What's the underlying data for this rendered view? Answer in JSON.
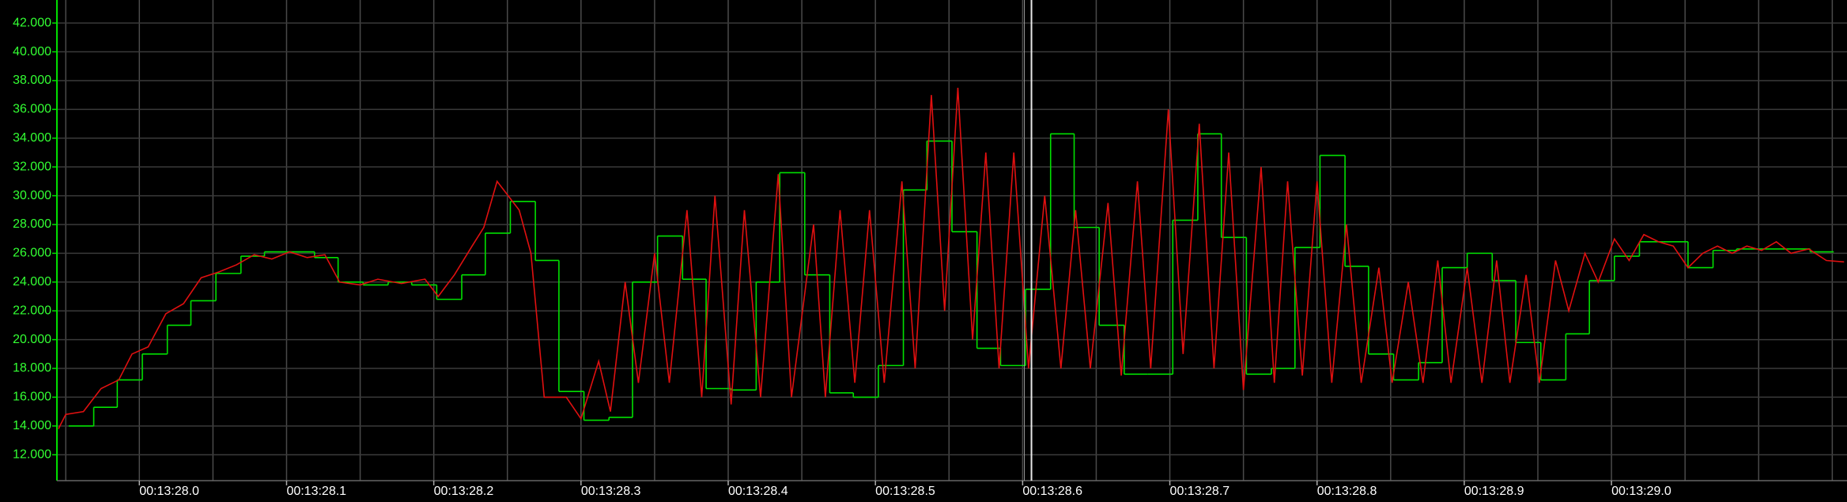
{
  "chart_data": {
    "type": "line",
    "xlim": [
      807.944,
      809.16
    ],
    "ylim": [
      10.2,
      43.6
    ],
    "xticks": [
      {
        "value": 808.0,
        "label": "00:13:28.0"
      },
      {
        "value": 808.1,
        "label": "00:13:28.1"
      },
      {
        "value": 808.2,
        "label": "00:13:28.2"
      },
      {
        "value": 808.3,
        "label": "00:13:28.3"
      },
      {
        "value": 808.4,
        "label": "00:13:28.4"
      },
      {
        "value": 808.5,
        "label": "00:13:28.5"
      },
      {
        "value": 808.6,
        "label": "00:13:28.6"
      },
      {
        "value": 808.7,
        "label": "00:13:28.7"
      },
      {
        "value": 808.8,
        "label": "00:13:28.8"
      },
      {
        "value": 808.9,
        "label": "00:13:28.9"
      },
      {
        "value": 809.0,
        "label": "00:13:29.0"
      }
    ],
    "xgrid": [
      807.95,
      808.0,
      808.05,
      808.1,
      808.15,
      808.2,
      808.25,
      808.3,
      808.35,
      808.4,
      808.45,
      808.5,
      808.55,
      808.6,
      808.65,
      808.7,
      808.75,
      808.8,
      808.85,
      808.9,
      808.95,
      809.0,
      809.05,
      809.1,
      809.15
    ],
    "yticks": [
      {
        "value": 12,
        "label": "12.000"
      },
      {
        "value": 14,
        "label": "14.000"
      },
      {
        "value": 16,
        "label": "16.000"
      },
      {
        "value": 18,
        "label": "18.000"
      },
      {
        "value": 20,
        "label": "20.000"
      },
      {
        "value": 22,
        "label": "22.000"
      },
      {
        "value": 24,
        "label": "24.000"
      },
      {
        "value": 26,
        "label": "26.000"
      },
      {
        "value": 28,
        "label": "28.000"
      },
      {
        "value": 30,
        "label": "30.000"
      },
      {
        "value": 32,
        "label": "32.000"
      },
      {
        "value": 34,
        "label": "34.000"
      },
      {
        "value": 36,
        "label": "36.000"
      },
      {
        "value": 38,
        "label": "38.000"
      },
      {
        "value": 40,
        "label": "40.000"
      },
      {
        "value": 42,
        "label": "42.000"
      }
    ],
    "grid": true,
    "cursor": 808.606,
    "series": [
      {
        "color": "#00e000",
        "step": true,
        "x": [
          807.952,
          807.969,
          807.985,
          808.002,
          808.019,
          808.035,
          808.052,
          808.069,
          808.085,
          808.102,
          808.119,
          808.135,
          808.152,
          808.169,
          808.185,
          808.202,
          808.219,
          808.235,
          808.252,
          808.269,
          808.285,
          808.302,
          808.319,
          808.335,
          808.352,
          808.369,
          808.385,
          808.402,
          808.419,
          808.435,
          808.452,
          808.469,
          808.485,
          808.502,
          808.519,
          808.535,
          808.552,
          808.569,
          808.585,
          808.602,
          808.619,
          808.635,
          808.652,
          808.669,
          808.685,
          808.702,
          808.719,
          808.735,
          808.752,
          808.769,
          808.785,
          808.802,
          808.819,
          808.835,
          808.852,
          808.869,
          808.885,
          808.902,
          808.919,
          808.935,
          808.952,
          808.969,
          808.985,
          809.002,
          809.019,
          809.035,
          809.052,
          809.069,
          809.085,
          809.102,
          809.119,
          809.135
        ],
        "values": [
          14.0,
          15.3,
          17.2,
          19.0,
          21.0,
          22.7,
          24.6,
          25.8,
          26.1,
          26.1,
          25.7,
          24.0,
          23.8,
          24.0,
          23.8,
          22.8,
          24.5,
          27.4,
          29.6,
          25.5,
          16.4,
          14.4,
          14.6,
          24.0,
          27.2,
          24.2,
          16.6,
          16.5,
          24.0,
          31.6,
          24.5,
          16.3,
          16.0,
          18.2,
          30.4,
          33.8,
          27.5,
          19.4,
          18.2,
          23.5,
          34.3,
          27.8,
          21.0,
          17.6,
          17.6,
          28.3,
          34.3,
          27.1,
          17.6,
          18.0,
          26.4,
          32.8,
          25.1,
          19.0,
          17.2,
          18.4,
          25.0,
          26.0,
          24.1,
          19.8,
          17.2,
          20.4,
          24.1,
          25.8,
          26.8,
          26.8,
          25.0,
          26.2,
          26.3,
          26.3,
          26.3,
          26.1
        ]
      },
      {
        "color": "#e01010",
        "step": false,
        "x": [
          807.945,
          807.95,
          807.962,
          807.974,
          807.986,
          807.995,
          808.006,
          808.018,
          808.03,
          808.042,
          808.054,
          808.066,
          808.078,
          808.09,
          808.102,
          808.114,
          808.126,
          808.136,
          808.15,
          808.162,
          808.178,
          808.194,
          808.203,
          808.214,
          808.226,
          808.234,
          808.243,
          808.258,
          808.266,
          808.275,
          808.29,
          808.3,
          808.312,
          808.32,
          808.33,
          808.339,
          808.35,
          808.36,
          808.372,
          808.382,
          808.391,
          808.402,
          808.411,
          808.422,
          808.434,
          808.443,
          808.458,
          808.466,
          808.476,
          808.486,
          808.496,
          808.506,
          808.518,
          808.527,
          808.538,
          808.547,
          808.556,
          808.566,
          808.575,
          808.584,
          808.594,
          808.604,
          808.615,
          808.626,
          808.636,
          808.646,
          808.658,
          808.667,
          808.678,
          808.687,
          808.699,
          808.709,
          808.72,
          808.73,
          808.74,
          808.75,
          808.762,
          808.771,
          808.78,
          808.79,
          808.8,
          808.81,
          808.82,
          808.83,
          808.842,
          808.851,
          808.862,
          808.872,
          808.882,
          808.891,
          808.902,
          808.912,
          808.922,
          808.931,
          808.942,
          808.951,
          808.962,
          808.971,
          808.982,
          808.991,
          809.002,
          809.012,
          809.022,
          809.032,
          809.042,
          809.052,
          809.062,
          809.072,
          809.082,
          809.092,
          809.102,
          809.112,
          809.122,
          809.134,
          809.146,
          809.158
        ],
        "values": [
          13.8,
          14.8,
          15.0,
          16.6,
          17.2,
          19.0,
          19.5,
          21.8,
          22.5,
          24.3,
          24.7,
          25.2,
          25.9,
          25.6,
          26.1,
          25.7,
          25.9,
          24.0,
          23.8,
          24.2,
          23.9,
          24.2,
          23.0,
          24.5,
          26.5,
          27.8,
          31.0,
          29.0,
          26.0,
          16.0,
          16.0,
          14.5,
          18.5,
          15.0,
          24,
          17,
          26,
          17,
          29,
          16,
          30,
          15.5,
          29,
          16,
          31.5,
          16,
          28,
          16,
          29,
          17,
          29,
          17,
          31,
          18,
          37,
          22,
          37.5,
          20,
          33,
          18,
          33,
          18,
          30,
          18,
          29,
          18,
          29.5,
          17.5,
          31,
          18,
          36,
          19,
          35,
          18,
          33,
          16.5,
          32,
          17,
          31,
          17.5,
          31,
          17,
          28,
          17,
          25,
          17,
          24,
          17,
          25.5,
          17,
          25,
          17,
          25.5,
          17,
          24.5,
          17,
          25.5,
          22,
          26,
          24,
          27,
          25.5,
          27.3,
          26.8,
          26.5,
          25,
          26,
          26.5,
          26,
          26.5,
          26.2,
          26.8,
          26,
          26.3,
          25.5,
          25.4
        ]
      }
    ]
  }
}
